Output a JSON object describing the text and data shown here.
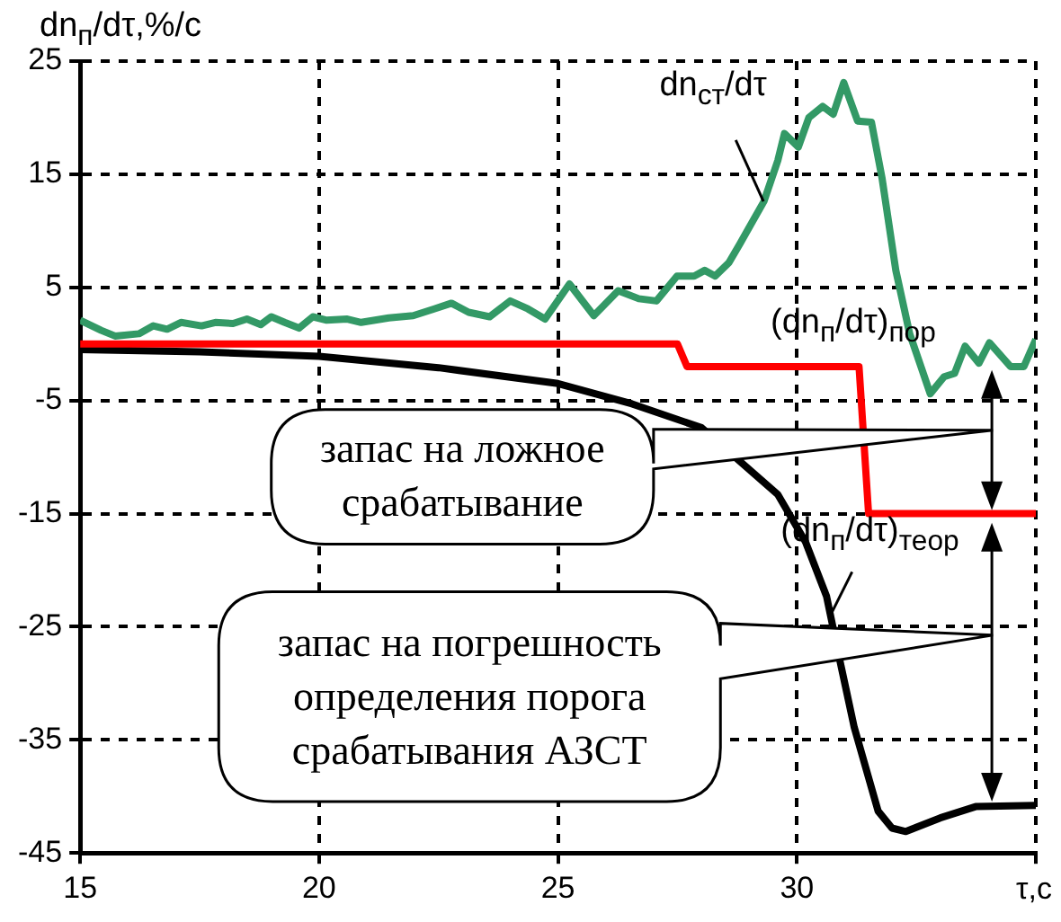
{
  "chart_data": {
    "type": "line",
    "ylabel": "dn$_{п}$/dτ,%/c",
    "xlabel": "τ,c",
    "xlim": [
      15,
      35
    ],
    "xticks": [
      15,
      20,
      25,
      30,
      {
        "value": 35,
        "label": null
      }
    ],
    "ylim": [
      -45,
      25
    ],
    "yticks": [
      -45,
      -35,
      -25,
      -15,
      -5,
      5,
      15,
      25
    ],
    "grid": true,
    "legend": false,
    "series": [
      {
        "color": "#339966",
        "x": [
          15,
          15.44,
          15.73,
          16.23,
          16.53,
          16.82,
          17.11,
          17.54,
          17.83,
          18.2,
          18.49,
          18.78,
          19,
          19.28,
          19.58,
          19.87,
          20.16,
          20.59,
          20.88,
          21.46,
          21.97,
          22.41,
          22.77,
          23.13,
          23.57,
          24,
          24.37,
          24.73,
          25.24,
          25.75,
          26.26,
          26.69,
          27.06,
          27.49,
          27.85,
          28.07,
          28.29,
          28.58,
          28.8,
          29.31,
          29.6,
          29.74,
          30.03,
          30.25,
          30.54,
          30.76,
          30.98,
          31.27,
          31.56,
          31.78,
          32.07,
          32.36,
          32.79,
          33.08,
          33.3,
          33.52,
          33.81,
          34.03,
          34.47,
          34.75,
          35
        ],
        "values": [
          2.1,
          1.2,
          0.7,
          0.9,
          1.6,
          1.3,
          1.9,
          1.6,
          1.9,
          1.8,
          2.2,
          1.7,
          2.4,
          1.9,
          1.4,
          2.4,
          2.1,
          2.2,
          1.9,
          2.3,
          2.5,
          3.1,
          3.6,
          2.8,
          2.4,
          3.8,
          3.1,
          2.2,
          5.3,
          2.5,
          4.7,
          4,
          3.8,
          6,
          6,
          6.5,
          6,
          7.2,
          8.8,
          12.6,
          16.2,
          18.6,
          17.4,
          20,
          21,
          20.3,
          23.1,
          19.7,
          19.6,
          14.7,
          6.5,
          0.9,
          -4.4,
          -2.9,
          -2.6,
          -0.2,
          -1.7,
          0.1,
          -2,
          -2,
          0.4
        ]
      },
      {
        "color": "#ff0000",
        "x": [
          15,
          27.5,
          27.7,
          31.3,
          31.5,
          35
        ],
        "values": [
          0,
          0,
          -2,
          -2,
          -15,
          -15
        ]
      },
      {
        "color": "#000000",
        "x": [
          15,
          17.5,
          20,
          22.5,
          25,
          26.55,
          28,
          29.6,
          30.18,
          30.62,
          30.9,
          31.2,
          31.7,
          31.99,
          32.28,
          33,
          33.74,
          35
        ],
        "values": [
          -0.5,
          -0.7,
          -1.1,
          -2.1,
          -3.5,
          -5.3,
          -7.4,
          -13.3,
          -17.5,
          -22.3,
          -28,
          -33.9,
          -41.3,
          -42.8,
          -43.1,
          -41.9,
          -40.9,
          -40.8
        ]
      }
    ],
    "annotations": [
      {
        "text": "dn$_{ст}$/dτ",
        "x": 29.3,
        "y": 12.6
      },
      {
        "text": "(dn$_{п}$/dτ)$_{пор}$",
        "x": 30.2,
        "y": -2
      },
      {
        "text": "(dn$_{п}$/dτ)$_{теор}$",
        "x": 30.7,
        "y": -24
      },
      "запас на ложное срабатывание",
      "запас на погрешность определения порога срабатывания АЗСТ"
    ]
  }
}
